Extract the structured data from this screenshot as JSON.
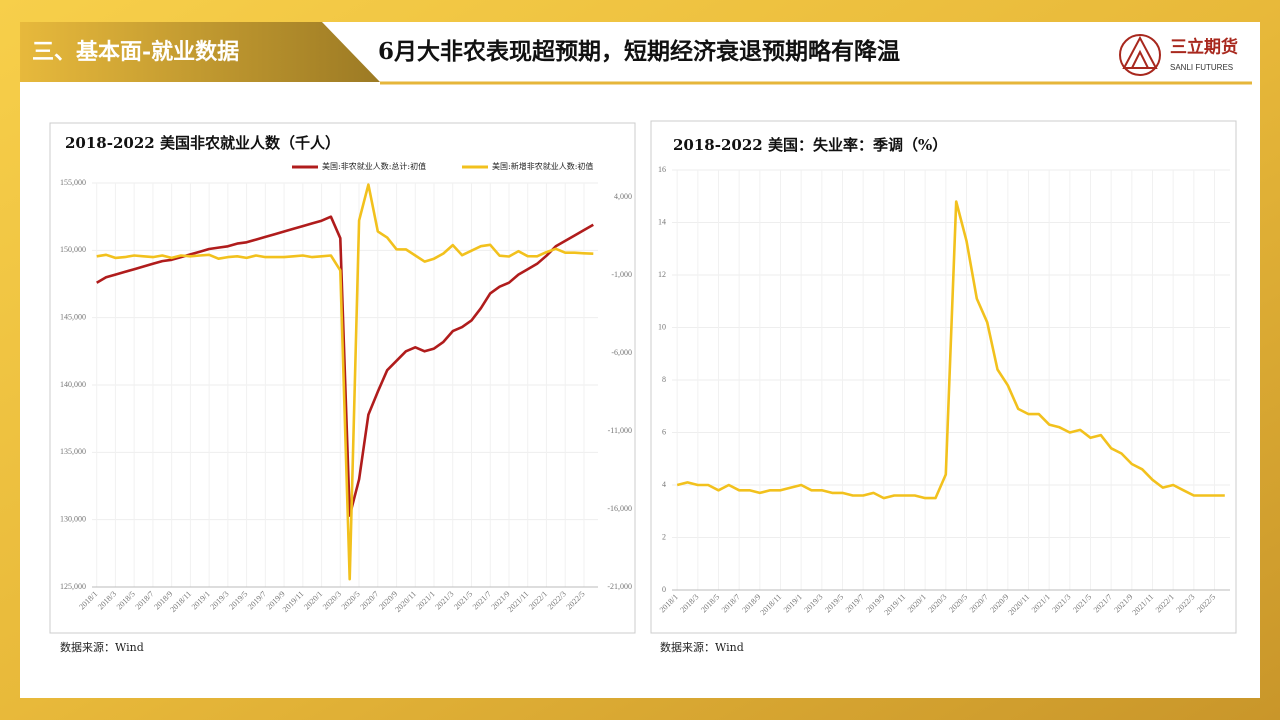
{
  "header": {
    "section": "三、基本面-就业数据",
    "headline": "6月大非农表现超预期，短期经济衰退预期略有降温",
    "logo_name": "三立期货",
    "logo_sub": "SANLI FUTURES"
  },
  "sources": [
    "数据来源：Wind",
    "数据来源：Wind"
  ],
  "chart_data": [
    {
      "type": "line",
      "title": "2018-2022 美国非农就业人数（千人）",
      "categories": [
        "2018/1",
        null,
        "2018/3",
        null,
        "2018/5",
        null,
        "2018/7",
        null,
        "2018/9",
        null,
        "2018/11",
        null,
        "2019/1",
        null,
        "2019/3",
        null,
        "2019/5",
        null,
        "2019/7",
        null,
        "2019/9",
        null,
        "2019/11",
        null,
        "2020/1",
        null,
        "2020/3",
        null,
        "2020/5",
        null,
        "2020/7",
        null,
        "2020/9",
        null,
        "2020/11",
        null,
        "2021/1",
        null,
        "2021/3",
        null,
        "2021/5",
        null,
        "2021/7",
        null,
        "2021/9",
        null,
        "2021/11",
        null,
        "2022/1",
        null,
        "2022/3",
        null,
        "2022/5",
        null
      ],
      "series": [
        {
          "name": "美国:非农就业人数:总计:初值",
          "color": "#b01c1c",
          "values": [
            147600,
            148000,
            148200,
            148400,
            148600,
            148800,
            149000,
            149200,
            149300,
            149500,
            149700,
            149900,
            150100,
            150200,
            150300,
            150500,
            150600,
            150800,
            151000,
            151200,
            151400,
            151600,
            151800,
            152000,
            152200,
            152500,
            150900,
            130300,
            133000,
            137800,
            139500,
            141100,
            141800,
            142500,
            142800,
            142500,
            142700,
            143200,
            144000,
            144300,
            144800,
            145700,
            146800,
            147300,
            147600,
            148200,
            148600,
            149000,
            149600,
            150300,
            150700,
            151100,
            151500,
            151900
          ]
        },
        {
          "name": "美国:新增非农就业人数:初值",
          "color": "#f2c11d",
          "axis": "y2",
          "values": [
            200,
            300,
            100,
            150,
            250,
            200,
            150,
            250,
            100,
            250,
            200,
            250,
            300,
            50,
            150,
            200,
            100,
            250,
            150,
            150,
            150,
            200,
            250,
            150,
            200,
            250,
            -700,
            -20500,
            2500,
            4800,
            1800,
            1400,
            650,
            640,
            250,
            -140,
            50,
            380,
            920,
            270,
            560,
            850,
            940,
            240,
            190,
            530,
            210,
            200,
            470,
            680,
            430,
            430,
            390,
            370
          ]
        }
      ],
      "ylim": [
        125000,
        155000
      ],
      "yticks": [
        {
          "value": 125000,
          "label": "125,000"
        },
        {
          "value": 130000,
          "label": "130,000"
        },
        {
          "value": 135000,
          "label": "135,000"
        },
        {
          "value": 140000,
          "label": "140,000"
        },
        {
          "value": 145000,
          "label": "145,000"
        },
        {
          "value": 150000,
          "label": "150,000"
        },
        {
          "value": 155000,
          "label": "155,000"
        }
      ],
      "y2lim": [
        -21000,
        4900
      ],
      "y2ticks": [
        {
          "value": -21000,
          "label": "-21,000"
        },
        {
          "value": -16000,
          "label": "-16,000"
        },
        {
          "value": -11000,
          "label": "-11,000"
        },
        {
          "value": -6000,
          "label": "-6,000"
        },
        {
          "value": -1000,
          "label": "-1,000"
        },
        {
          "value": 4000,
          "label": "4,000"
        }
      ],
      "grid": true,
      "legend": "top"
    },
    {
      "type": "line",
      "title": "2018-2022 美国：失业率：季调（%）",
      "categories": [
        "2018/1",
        null,
        "2018/3",
        null,
        "2018/5",
        null,
        "2018/7",
        null,
        "2018/9",
        null,
        "2018/11",
        null,
        "2019/1",
        null,
        "2019/3",
        null,
        "2019/5",
        null,
        "2019/7",
        null,
        "2019/9",
        null,
        "2019/11",
        null,
        "2020/1",
        null,
        "2020/3",
        null,
        "2020/5",
        null,
        "2020/7",
        null,
        "2020/9",
        null,
        "2020/11",
        null,
        "2021/1",
        null,
        "2021/3",
        null,
        "2021/5",
        null,
        "2021/7",
        null,
        "2021/9",
        null,
        "2021/11",
        null,
        "2022/1",
        null,
        "2022/3",
        null,
        "2022/5",
        null
      ],
      "series": [
        {
          "name": "美国:失业率:季调",
          "color": "#f2c11d",
          "values": [
            4.0,
            4.1,
            4.0,
            4.0,
            3.8,
            4.0,
            3.8,
            3.8,
            3.7,
            3.8,
            3.8,
            3.9,
            4.0,
            3.8,
            3.8,
            3.7,
            3.7,
            3.6,
            3.6,
            3.7,
            3.5,
            3.6,
            3.6,
            3.6,
            3.5,
            3.5,
            4.4,
            14.8,
            13.3,
            11.1,
            10.2,
            8.4,
            7.8,
            6.9,
            6.7,
            6.7,
            6.3,
            6.2,
            6.0,
            6.1,
            5.8,
            5.9,
            5.4,
            5.2,
            4.8,
            4.6,
            4.2,
            3.9,
            4.0,
            3.8,
            3.6,
            3.6,
            3.6,
            3.6
          ]
        }
      ],
      "ylim": [
        0,
        16
      ],
      "yticks": [
        0,
        2,
        4,
        6,
        8,
        10,
        12,
        14,
        16
      ],
      "grid": true,
      "legend": "none"
    }
  ]
}
